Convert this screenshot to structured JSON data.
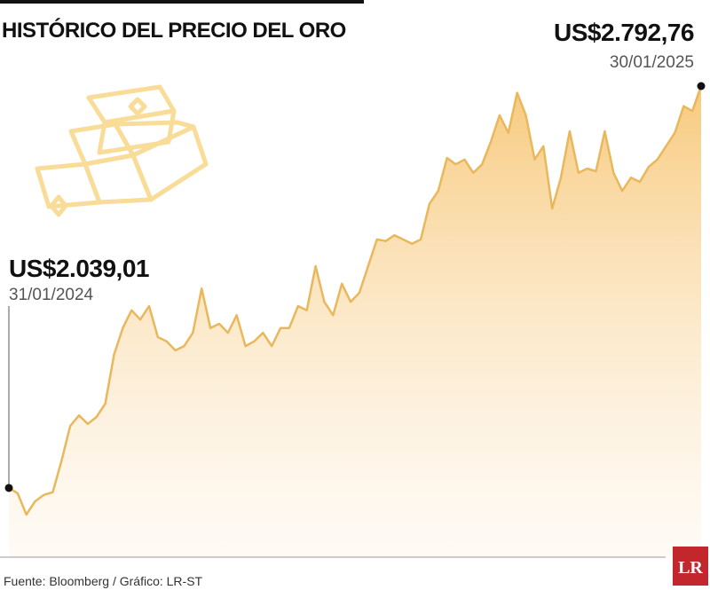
{
  "chart_data": {
    "type": "area",
    "title": "HISTÓRICO DEL PRECIO DEL ORO",
    "source": "Fuente: Bloomberg / Gráfico: LR-ST",
    "logo": "LR",
    "color": "#e9b75c",
    "categories": [
      "31/01/2024",
      null,
      null,
      null,
      null,
      null,
      null,
      null,
      null,
      null,
      null,
      null,
      null,
      null,
      null,
      null,
      null,
      null,
      null,
      null,
      null,
      null,
      null,
      null,
      null,
      null,
      null,
      null,
      null,
      null,
      null,
      null,
      null,
      null,
      null,
      null,
      null,
      null,
      null,
      null,
      null,
      null,
      null,
      null,
      null,
      null,
      null,
      null,
      null,
      null,
      null,
      null,
      null,
      null,
      null,
      null,
      null,
      null,
      null,
      null,
      null,
      null,
      null,
      null,
      null,
      null,
      null,
      null,
      null,
      null,
      null,
      null,
      null,
      null,
      null,
      null,
      null,
      null,
      null,
      "30/01/2025"
    ],
    "values": [
      2039.01,
      2029,
      1989,
      2014,
      2026,
      2031,
      2089,
      2155,
      2175,
      2159,
      2172,
      2197,
      2289,
      2339,
      2372,
      2355,
      2380,
      2322,
      2314,
      2297,
      2305,
      2330,
      2413,
      2339,
      2347,
      2330,
      2363,
      2305,
      2314,
      2330,
      2305,
      2339,
      2339,
      2380,
      2372,
      2455,
      2388,
      2363,
      2422,
      2388,
      2405,
      2455,
      2505,
      2502,
      2513,
      2505,
      2497,
      2505,
      2572,
      2596,
      2658,
      2646,
      2655,
      2630,
      2646,
      2688,
      2738,
      2705,
      2780,
      2738,
      2655,
      2680,
      2563,
      2621,
      2708,
      2630,
      2638,
      2633,
      2708,
      2630,
      2596,
      2621,
      2613,
      2641,
      2655,
      2680,
      2705,
      2755,
      2746,
      2792.76
    ],
    "value_labels": [
      "US$2.039,01",
      null,
      null,
      null,
      null,
      null,
      null,
      null,
      null,
      null,
      null,
      null,
      null,
      null,
      null,
      null,
      null,
      null,
      null,
      null,
      null,
      null,
      null,
      null,
      null,
      null,
      null,
      null,
      null,
      null,
      null,
      null,
      null,
      null,
      null,
      null,
      null,
      null,
      null,
      null,
      null,
      null,
      null,
      null,
      null,
      null,
      null,
      null,
      null,
      null,
      null,
      null,
      null,
      null,
      null,
      null,
      null,
      null,
      null,
      null,
      null,
      null,
      null,
      null,
      null,
      null,
      null,
      null,
      null,
      null,
      null,
      null,
      null,
      null,
      null,
      null,
      null,
      null,
      null,
      "US$2.792,76"
    ]
  }
}
